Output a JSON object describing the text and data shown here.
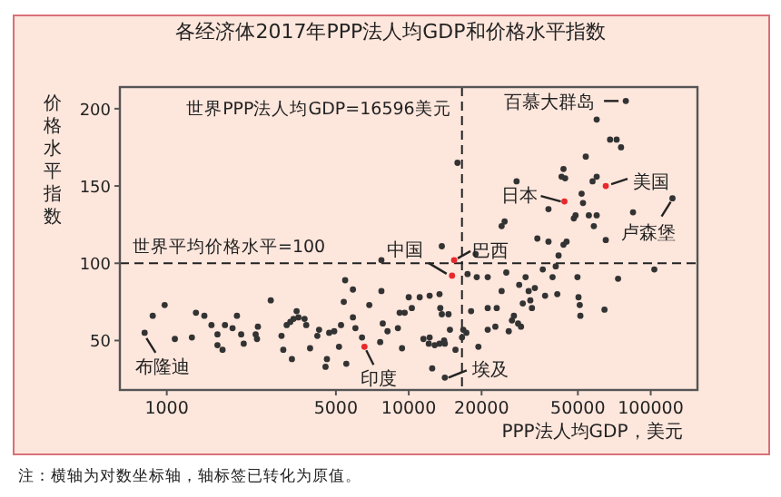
{
  "chart_data": {
    "type": "scatter",
    "title": "各经济体2017年PPP法人均GDP和价格水平指数",
    "xlabel": "PPP法人均GDP，美元",
    "ylabel": "价格水平指数",
    "log": "x",
    "xlim": [
      640,
      156000
    ],
    "xticks": [
      1000,
      5000,
      10000,
      20000,
      50000,
      100000
    ],
    "ylim": [
      18,
      214
    ],
    "yticks": [
      50,
      100,
      150,
      200
    ],
    "grid": false,
    "marker": "circle",
    "series": [
      {
        "color": "#333333",
        "x": [
          810,
          875,
          980,
          1080,
          1270,
          1320,
          1430,
          1530,
          1620,
          1620,
          1700,
          1740,
          1870,
          1950,
          2030,
          2080,
          2330,
          2360,
          2380,
          2690,
          2980,
          3030,
          3130,
          3240,
          3290,
          3340,
          3440,
          3500,
          3710,
          3770,
          3910,
          4190,
          4260,
          4530,
          4590,
          4690,
          4920,
          5150,
          5250,
          5390,
          5460,
          5520,
          5880,
          5880,
          6020,
          6410,
          6870,
          7710,
          7810,
          8170,
          9020,
          9170,
          9380,
          9620,
          10000,
          7620,
          7710,
          13700,
          10300,
          11100,
          12200,
          13400,
          13500,
          13700,
          14600,
          14800,
          11500,
          12100,
          12200,
          12800,
          13400,
          14000,
          14100,
          12500,
          14100,
          15600,
          16800,
          16600,
          17300,
          18100,
          17500,
          18900,
          19400,
          19100,
          21200,
          21200,
          21200,
          22800,
          23100,
          24200,
          25300,
          25900,
          26700,
          27200,
          28300,
          29100,
          28600,
          29600,
          30400,
          31300,
          31800,
          32300,
          33200,
          34000,
          35800,
          36600,
          37800,
          39300,
          40500,
          41100,
          41600,
          43600,
          44900,
          50300,
          50900,
          51200,
          49800,
          65200,
          64400,
          73300,
          103500,
          15900,
          78900,
          59800,
          67900,
          72300,
          75400,
          53900,
          43600,
          44300,
          42800,
          57500,
          59800,
          51800,
          27900,
          37800,
          52500,
          48900,
          48100,
          55500,
          59800,
          58200,
          84500,
          123000,
          24900,
          24200
        ],
        "values": [
          55,
          66,
          73,
          51,
          52,
          68,
          66,
          60,
          54,
          47,
          44,
          60,
          58,
          66,
          54,
          48,
          54,
          51,
          59,
          76,
          53,
          44,
          60,
          62,
          38,
          64,
          69,
          65,
          64,
          60,
          45,
          53,
          57,
          33,
          38,
          55,
          56,
          46,
          60,
          75,
          89,
          35,
          83,
          65,
          58,
          52,
          73,
          82,
          61,
          56,
          58,
          68,
          45,
          68,
          78,
          49,
          102,
          111,
          71,
          78,
          79,
          80,
          71,
          67,
          67,
          57,
          51,
          48,
          52,
          47,
          48,
          50,
          48,
          32,
          26,
          44,
          57,
          52,
          55,
          69,
          93,
          106,
          46,
          91,
          91,
          71,
          57,
          59,
          71,
          82,
          94,
          56,
          63,
          66,
          61,
          59,
          86,
          74,
          91,
          82,
          76,
          71,
          84,
          116,
          96,
          79,
          114,
          91,
          98,
          80,
          105,
          112,
          114,
          78,
          73,
          66,
          91,
          115,
          70,
          90,
          96,
          165,
          205,
          193,
          180,
          180,
          175,
          169,
          161,
          155,
          156,
          153,
          156,
          145,
          153,
          135,
          139,
          131,
          129,
          131,
          131,
          124,
          133,
          142,
          127,
          124
        ]
      },
      {
        "color": "#e8282b",
        "x": [
          6560,
          15100,
          15400,
          44000,
          65200
        ],
        "values": [
          46,
          92,
          102,
          140,
          150
        ]
      }
    ],
    "ref_lines": [
      {
        "axis": "x",
        "value": 16596,
        "label": "世界PPP法人均GDP=16596美元",
        "line_style": "dashed"
      },
      {
        "axis": "y",
        "value": 100,
        "label": "世界平均价格水平=100",
        "line_style": "dashed"
      }
    ],
    "annotations": [
      {
        "text": "百慕大群岛",
        "x": 78900,
        "y": 205
      },
      {
        "text": "美国",
        "x": 65200,
        "y": 150
      },
      {
        "text": "日本",
        "x": 44000,
        "y": 140
      },
      {
        "text": "卢森堡",
        "x": 123000,
        "y": 142
      },
      {
        "text": "中国",
        "x": 15100,
        "y": 92
      },
      {
        "text": "巴西",
        "x": 15400,
        "y": 102
      },
      {
        "text": "印度",
        "x": 6560,
        "y": 46
      },
      {
        "text": "埃及",
        "x": 14100,
        "y": 26
      },
      {
        "text": "布隆迪",
        "x": 810,
        "y": 55
      },
      "注：横轴为对数坐标轴，轴标签已转化为原值。"
    ]
  }
}
